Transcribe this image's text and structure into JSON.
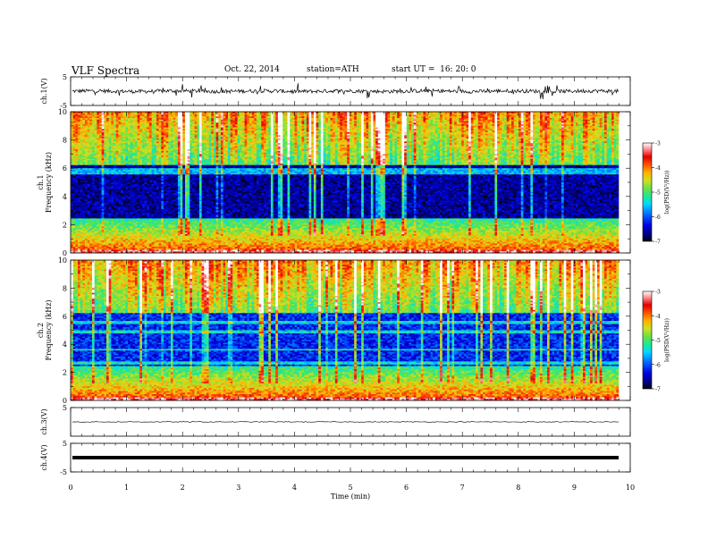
{
  "header": {
    "title": "VLF Spectra",
    "date": "Oct. 22, 2014",
    "station": "station=ATH",
    "start": "start UT =  16: 20: 0"
  },
  "chart_data": [
    {
      "type": "line",
      "panel": "ch1-waveform",
      "ylabel": "ch.1(V)",
      "yticks": [
        "5",
        "-5"
      ],
      "ylim": [
        -5,
        5
      ],
      "xlim": [
        0,
        9.8
      ],
      "series": [
        {
          "values_description_only": false
        }
      ],
      "baseline": 0,
      "color": "#000000"
    },
    {
      "type": "heatmap",
      "panel": "ch1-spectrogram",
      "ylabel": "ch.1\nFrequency (kHz)",
      "ylabel_lines": [
        "ch.1",
        "Frequency (kHz)"
      ],
      "yticks": [
        "0",
        "2",
        "4",
        "6",
        "8",
        "10"
      ],
      "ylim": [
        0,
        10
      ],
      "xlim": [
        0,
        9.8
      ],
      "colorbar": {
        "label": "log(PSD(V²/Hz))",
        "ticks": [
          "-3",
          "-4",
          "-5",
          "-6",
          "-7"
        ],
        "range": [
          -7,
          -3
        ],
        "colors": [
          "#000000",
          "#0000c8",
          "#0060ff",
          "#00d0ff",
          "#30e080",
          "#a0e030",
          "#ffd000",
          "#ff7000",
          "#e00000",
          "#ffa0a0",
          "#ffffff"
        ]
      }
    },
    {
      "type": "heatmap",
      "panel": "ch2-spectrogram",
      "ylabel": "ch.2\nFrequency (kHz)",
      "ylabel_lines": [
        "ch.2",
        "Frequency (kHz)"
      ],
      "yticks": [
        "0",
        "2",
        "4",
        "6",
        "8",
        "10"
      ],
      "ylim": [
        0,
        10
      ],
      "xlim": [
        0,
        9.8
      ],
      "colorbar": {
        "label": "log(PSD(V²/Hz))",
        "ticks": [
          "-3",
          "-4",
          "-5",
          "-6",
          "-7"
        ],
        "range": [
          -7,
          -3
        ]
      }
    },
    {
      "type": "line",
      "panel": "ch3-waveform",
      "ylabel": "ch.3(V)",
      "yticks": [
        "5"
      ],
      "ylim": [
        -5,
        5
      ],
      "baseline": 0
    },
    {
      "type": "line",
      "panel": "ch4-waveform",
      "ylabel": "ch.4(V)",
      "yticks": [
        "5",
        "-5"
      ],
      "ylim": [
        -5,
        5
      ],
      "baseline": 0
    }
  ],
  "xaxis": {
    "label": "Time (min)",
    "ticks": [
      "0",
      "1",
      "2",
      "3",
      "4",
      "5",
      "6",
      "7",
      "8",
      "9",
      "10"
    ],
    "range": [
      0,
      10
    ]
  }
}
